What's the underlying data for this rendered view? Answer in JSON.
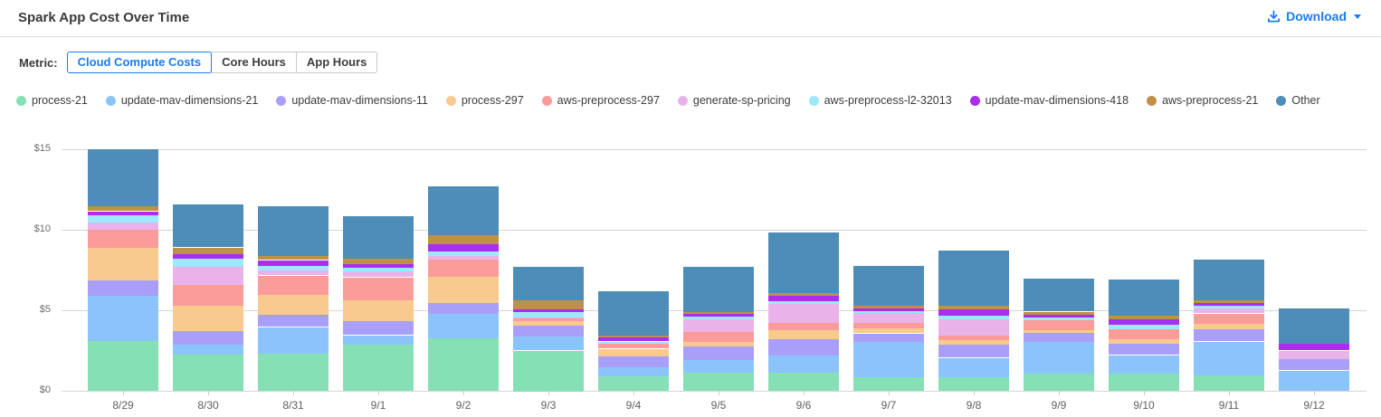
{
  "header": {
    "title": "Spark App Cost Over Time",
    "download_label": "Download"
  },
  "metric": {
    "label": "Metric:",
    "options": [
      {
        "label": "Cloud Compute Costs",
        "active": true
      },
      {
        "label": "Core Hours",
        "active": false
      },
      {
        "label": "App Hours",
        "active": false
      }
    ]
  },
  "colors": {
    "accent_blue": "#1b7ced",
    "grid": "#d4d4d4"
  },
  "chart_data": {
    "type": "bar",
    "stacked": true,
    "title": "Spark App Cost Over Time",
    "xlabel": "",
    "ylabel": "",
    "ylim": [
      0,
      15
    ],
    "y_ticks": [
      0,
      5,
      10,
      15
    ],
    "y_tick_labels": [
      "$0",
      "$5",
      "$10",
      "$15"
    ],
    "grid": true,
    "legend_position": "top",
    "categories": [
      "8/29",
      "8/30",
      "8/31",
      "9/1",
      "9/2",
      "9/3",
      "9/4",
      "9/5",
      "9/6",
      "9/7",
      "9/8",
      "9/9",
      "9/10",
      "9/11",
      "9/12"
    ],
    "series": [
      {
        "name": "process-21",
        "color": "#85e0b6",
        "values": [
          3.1,
          2.25,
          2.3,
          2.9,
          3.25,
          2.5,
          0.9,
          1.1,
          1.15,
          0.85,
          0.85,
          1.1,
          1.05,
          0.95,
          0
        ]
      },
      {
        "name": "update-mav-dimensions-21",
        "color": "#8ac4fb",
        "values": [
          2.8,
          0.6,
          1.65,
          0.55,
          1.5,
          0.85,
          0.6,
          0.8,
          1.05,
          2.2,
          1.2,
          1.95,
          1.15,
          2.1,
          1.25
        ]
      },
      {
        "name": "update-mav-dimensions-11",
        "color": "#aa9ff8",
        "values": [
          0.95,
          0.9,
          0.75,
          0.85,
          0.7,
          0.7,
          0.65,
          0.85,
          1.0,
          0.5,
          0.8,
          0.55,
          0.7,
          0.75,
          0.75
        ]
      },
      {
        "name": "process-297",
        "color": "#f8ca8e",
        "values": [
          2.05,
          1.55,
          1.25,
          1.35,
          1.65,
          0.3,
          0.45,
          0.3,
          0.55,
          0.3,
          0.3,
          0.2,
          0.3,
          0.4,
          0
        ]
      },
      {
        "name": "aws-preprocess-297",
        "color": "#fb9c9a",
        "values": [
          1.1,
          1.3,
          1.2,
          1.4,
          1.05,
          0.15,
          0.3,
          0.6,
          0.45,
          0.4,
          0.3,
          0.6,
          0.6,
          0.6,
          0
        ]
      },
      {
        "name": "generate-sp-pricing",
        "color": "#e9b3e9",
        "values": [
          0.45,
          1.1,
          0.3,
          0.4,
          0.2,
          0.05,
          0.05,
          0.8,
          1.2,
          0.6,
          1.0,
          0,
          0,
          0.3,
          0.5
        ]
      },
      {
        "name": "aws-preprocess-l2-32013",
        "color": "#9de8fc",
        "values": [
          0.45,
          0.5,
          0.3,
          0.2,
          0.3,
          0.35,
          0.1,
          0.15,
          0.15,
          0.12,
          0.2,
          0.17,
          0.28,
          0.17,
          0
        ]
      },
      {
        "name": "update-mav-dimensions-418",
        "color": "#a92ef0",
        "values": [
          0.25,
          0.3,
          0.35,
          0.2,
          0.45,
          0.15,
          0.3,
          0.15,
          0.35,
          0.15,
          0.45,
          0.17,
          0.35,
          0.17,
          0.4
        ]
      },
      {
        "name": "aws-preprocess-21",
        "color": "#bf9048",
        "values": [
          0.3,
          0.4,
          0.25,
          0.35,
          0.55,
          0.55,
          0.1,
          0.17,
          0.2,
          0.2,
          0.2,
          0.17,
          0.22,
          0.17,
          0
        ]
      },
      {
        "name": "Other",
        "color": "#4e8db8",
        "values": [
          3.55,
          2.65,
          3.1,
          2.65,
          3.05,
          2.1,
          2.75,
          2.8,
          3.75,
          2.45,
          3.4,
          2.05,
          2.25,
          2.55,
          2.2
        ]
      }
    ]
  }
}
